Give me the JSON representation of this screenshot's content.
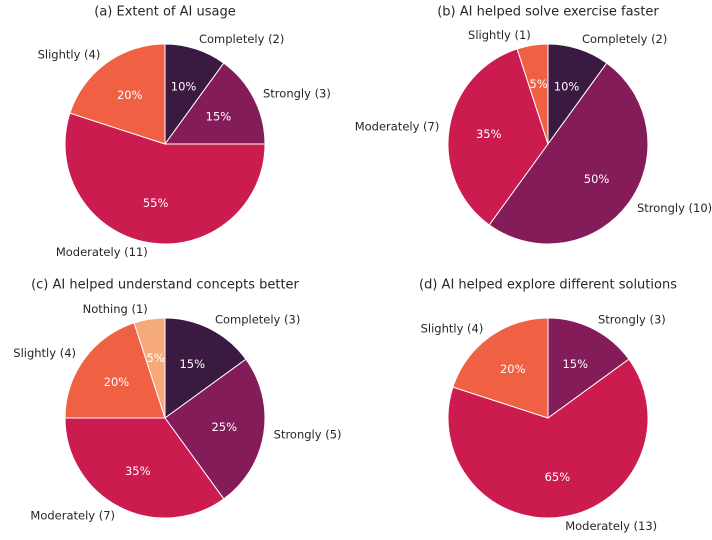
{
  "chart_data": [
    {
      "type": "pie",
      "title": "(a) Extent of AI usage",
      "categories": [
        "Completely (2)",
        "Strongly (3)",
        "Moderately (11)",
        "Slightly (4)"
      ],
      "values": [
        10,
        15,
        55,
        20
      ],
      "value_labels": [
        "10%",
        "15%",
        "55%",
        "20%"
      ],
      "colors": [
        "#3a1a40",
        "#851c5a",
        "#cb1b4f",
        "#f06043"
      ]
    },
    {
      "type": "pie",
      "title": "(b) AI helped solve exercise faster",
      "categories": [
        "Completely (2)",
        "Strongly (10)",
        "Moderately (7)",
        "Slightly (1)"
      ],
      "values": [
        10,
        50,
        35,
        5
      ],
      "value_labels": [
        "10%",
        "50%",
        "35%",
        "5%"
      ],
      "colors": [
        "#3a1a40",
        "#851c5a",
        "#cb1b4f",
        "#f06043"
      ]
    },
    {
      "type": "pie",
      "title": "(c) AI helped understand concepts better",
      "categories": [
        "Completely (3)",
        "Strongly (5)",
        "Moderately (7)",
        "Slightly (4)",
        "Nothing (1)"
      ],
      "values": [
        15,
        25,
        35,
        20,
        5
      ],
      "value_labels": [
        "15%",
        "25%",
        "35%",
        "20%",
        "5%"
      ],
      "colors": [
        "#3a1a40",
        "#851c5a",
        "#cb1b4f",
        "#f06043",
        "#f6a97b"
      ]
    },
    {
      "type": "pie",
      "title": "(d) AI helped explore different solutions",
      "categories": [
        "Strongly (3)",
        "Moderately (13)",
        "Slightly (4)"
      ],
      "values": [
        15,
        65,
        20
      ],
      "value_labels": [
        "15%",
        "65%",
        "20%"
      ],
      "colors": [
        "#851c5a",
        "#cb1b4f",
        "#f06043"
      ]
    }
  ]
}
